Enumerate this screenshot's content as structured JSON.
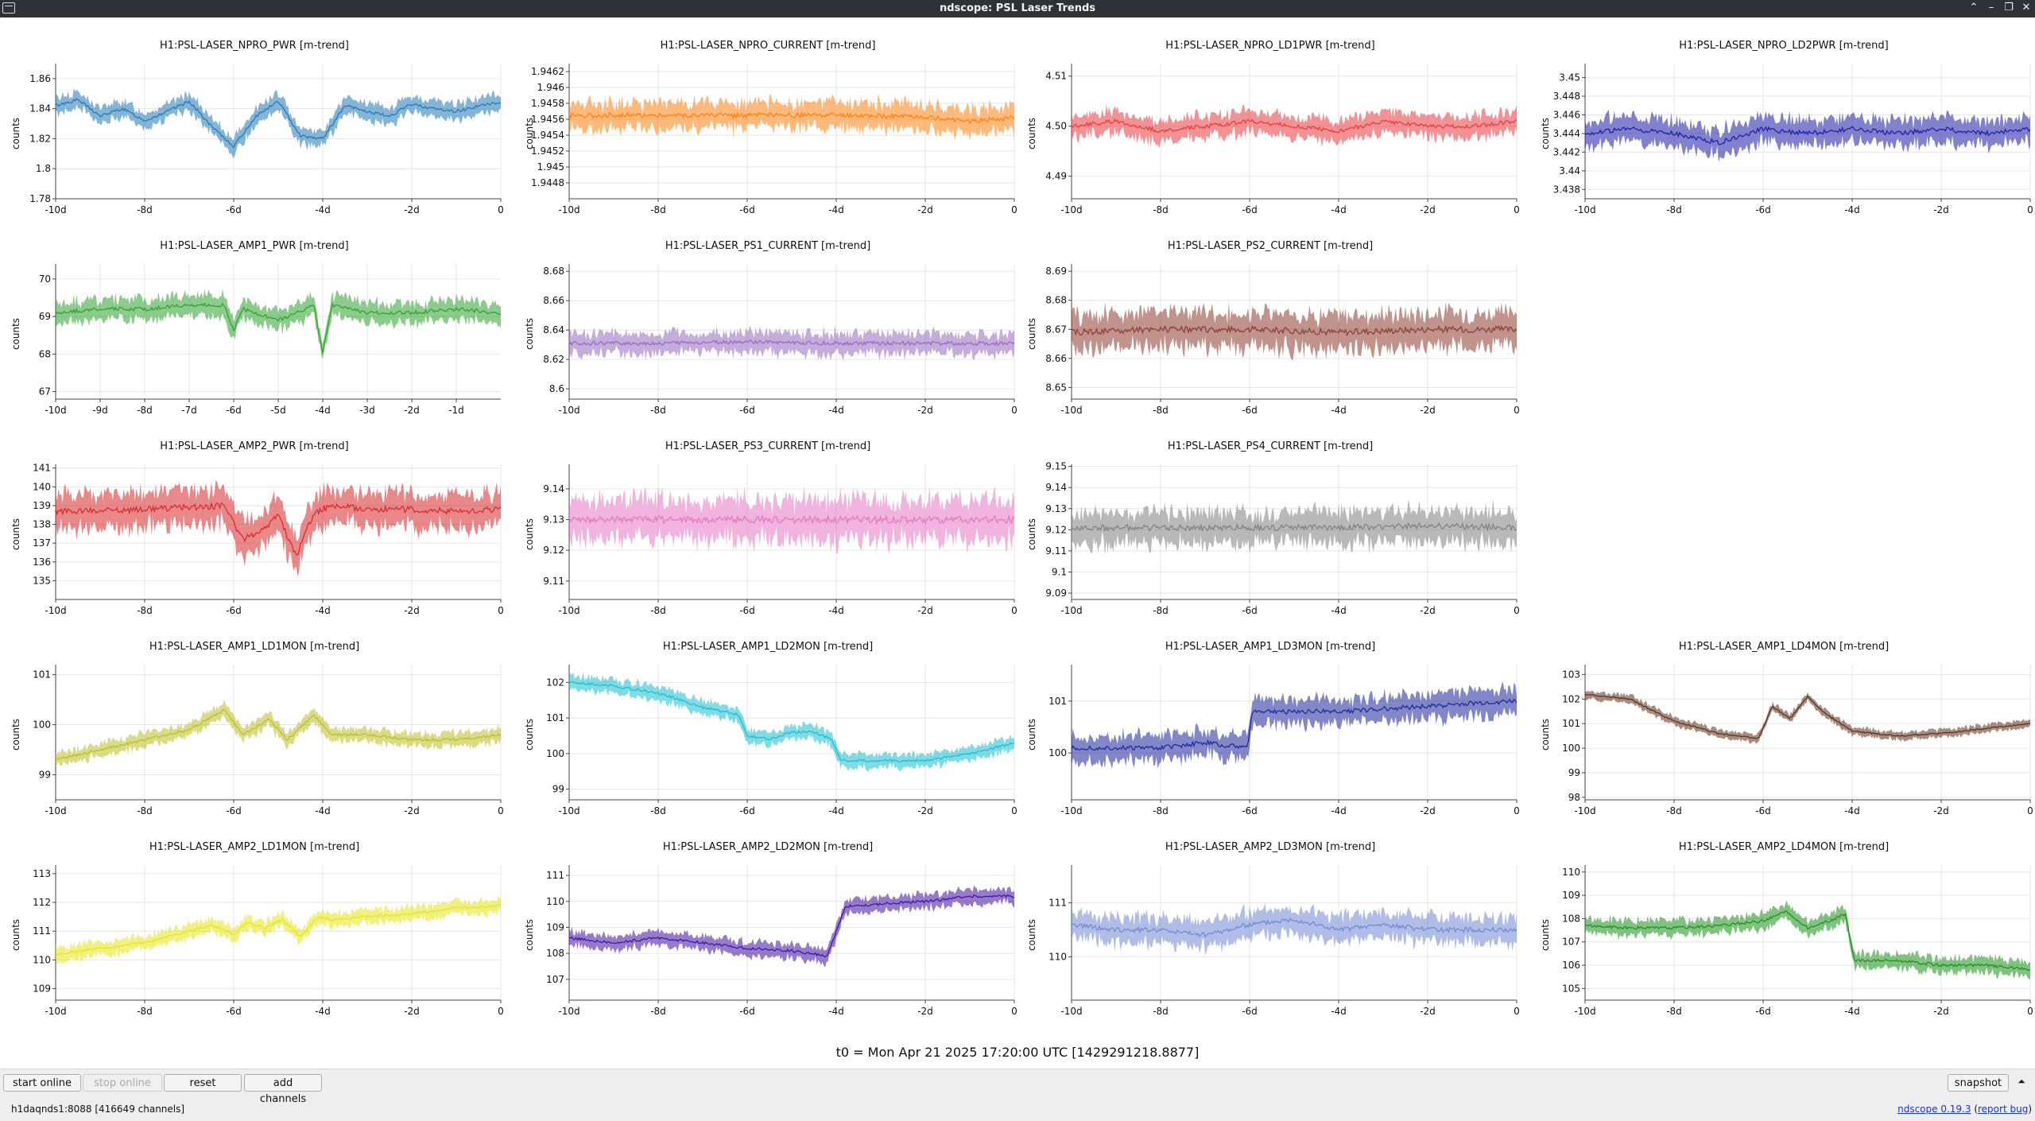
{
  "window": {
    "title": "ndscope: PSL Laser Trends",
    "controls": [
      {
        "name": "keep-above-icon",
        "glyph": "⌃"
      },
      {
        "name": "minimize-icon",
        "glyph": "–"
      },
      {
        "name": "maximize-icon",
        "glyph": "❐"
      },
      {
        "name": "close-icon",
        "glyph": "✕"
      }
    ]
  },
  "axis_label": "counts",
  "t0_label": "t0 = Mon Apr 21 2025 17:20:00 UTC [1429291218.8877]",
  "toolbar": {
    "start_online": "start online",
    "stop_online": "stop online",
    "reset": "reset",
    "add_channels": "add channels",
    "snapshot": "snapshot",
    "expand_icon": "⏶"
  },
  "status": {
    "server": "h1daqnds1:8088  [416649 channels]",
    "version_link": "ndscope 0.19.3",
    "open_paren": " (",
    "report_bug": "report bug",
    "close_paren": ")"
  },
  "chart_data": [
    {
      "type": "line",
      "title": "H1:PSL-LASER_NPRO_PWR [m-trend]",
      "ylabel": "counts",
      "color": "#1f77b4",
      "ylim": [
        1.78,
        1.87
      ],
      "yticks": [
        "1.86",
        "1.84",
        "1.82",
        "1.8",
        "1.78"
      ],
      "xticks": [
        "-10d",
        "-8d",
        "-6d",
        "-4d",
        "-2d",
        "0"
      ],
      "x": [
        -10,
        -9.5,
        -9,
        -8.5,
        -8,
        -7.5,
        -7,
        -6.5,
        -6,
        -5.5,
        -5,
        -4.5,
        -4,
        -3.5,
        -3,
        -2.5,
        -2,
        -1.5,
        -1,
        -0.5,
        0
      ],
      "y": [
        1.842,
        1.846,
        1.835,
        1.84,
        1.832,
        1.838,
        1.845,
        1.828,
        1.815,
        1.835,
        1.845,
        1.822,
        1.82,
        1.842,
        1.838,
        1.835,
        1.843,
        1.84,
        1.838,
        1.842,
        1.844
      ],
      "band": 0.01
    },
    {
      "type": "line",
      "title": "H1:PSL-LASER_NPRO_CURRENT [m-trend]",
      "ylabel": "counts",
      "color": "#ff7f0e",
      "ylim": [
        1.9446,
        1.9463
      ],
      "yticks": [
        "1.9462",
        "1.946",
        "1.9458",
        "1.9456",
        "1.9454",
        "1.9452",
        "1.945",
        "1.9448"
      ],
      "xticks": [
        "-10d",
        "-8d",
        "-6d",
        "-4d",
        "-2d",
        "0"
      ],
      "x": [
        -10,
        -8,
        -6,
        -4,
        -2,
        -1,
        0
      ],
      "y": [
        1.94565,
        1.94565,
        1.94565,
        1.94565,
        1.94563,
        1.94558,
        1.94562
      ],
      "band": 0.0003
    },
    {
      "type": "line",
      "title": "H1:PSL-LASER_NPRO_LD1PWR [m-trend]",
      "ylabel": "counts",
      "color": "#e8383d",
      "ylim": [
        4.4855,
        4.5125
      ],
      "yticks": [
        "4.51",
        "4.50",
        "4.49"
      ],
      "xticks": [
        "-10d",
        "-8d",
        "-6d",
        "-4d",
        "-2d",
        "0"
      ],
      "x": [
        -10,
        -9,
        -8,
        -7,
        -6,
        -5,
        -4,
        -3,
        -2,
        -1,
        0
      ],
      "y": [
        4.5,
        4.501,
        4.499,
        4.5,
        4.501,
        4.5,
        4.499,
        4.501,
        4.5,
        4.5,
        4.501
      ],
      "band": 0.004
    },
    {
      "type": "line",
      "title": "H1:PSL-LASER_NPRO_LD2PWR [m-trend]",
      "ylabel": "counts",
      "color": "#1a1aa6",
      "ylim": [
        3.437,
        3.4515
      ],
      "yticks": [
        "3.45",
        "3.448",
        "3.446",
        "3.444",
        "3.442",
        "3.44",
        "3.438"
      ],
      "xticks": [
        "-10d",
        "-8d",
        "-6d",
        "-4d",
        "-2d",
        "0"
      ],
      "x": [
        -10,
        -9,
        -8,
        -7,
        -6,
        -5,
        -4,
        -3,
        -2,
        -1,
        0
      ],
      "y": [
        3.444,
        3.4445,
        3.444,
        3.443,
        3.4445,
        3.444,
        3.4445,
        3.444,
        3.4445,
        3.444,
        3.4445
      ],
      "band": 0.0025
    },
    {
      "type": "line",
      "title": "H1:PSL-LASER_AMP1_PWR [m-trend]",
      "ylabel": "counts",
      "color": "#2ca02c",
      "ylim": [
        66.8,
        70.4
      ],
      "yticks": [
        "70",
        "69",
        "68",
        "67"
      ],
      "xticks": [
        "-10d",
        "-9d",
        "-8d",
        "-7d",
        "-6d",
        "-5d",
        "-4d",
        "-3d",
        "-2d",
        "-1d"
      ],
      "x": [
        -10,
        -9,
        -8,
        -7,
        -6.2,
        -6,
        -5.8,
        -5,
        -4.2,
        -4,
        -3.8,
        -3,
        -2,
        -1,
        -0.1
      ],
      "y": [
        69.1,
        69.2,
        69.2,
        69.3,
        69.3,
        68.6,
        69.2,
        68.9,
        69.3,
        68,
        69.3,
        69.1,
        69.1,
        69.2,
        69.1
      ],
      "band": 0.5
    },
    {
      "type": "line",
      "title": "H1:PSL-LASER_PS1_CURRENT [m-trend]",
      "ylabel": "counts",
      "color": "#9467bd",
      "ylim": [
        8.593,
        8.685
      ],
      "yticks": [
        "8.68",
        "8.66",
        "8.64",
        "8.62",
        "8.6"
      ],
      "xticks": [
        "-10d",
        "-8d",
        "-6d",
        "-4d",
        "-2d",
        "0"
      ],
      "x": [
        -10,
        -8,
        -6,
        -4,
        -2,
        0
      ],
      "y": [
        8.631,
        8.631,
        8.632,
        8.631,
        8.631,
        8.631
      ],
      "band": 0.013
    },
    {
      "type": "line",
      "title": "H1:PSL-LASER_PS2_CURRENT [m-trend]",
      "ylabel": "counts",
      "color": "#8c3b2f",
      "ylim": [
        8.646,
        8.6925
      ],
      "yticks": [
        "8.69",
        "8.68",
        "8.67",
        "8.66",
        "8.65"
      ],
      "xticks": [
        "-10d",
        "-8d",
        "-6d",
        "-4d",
        "-2d",
        "0"
      ],
      "x": [
        -10,
        -8,
        -6,
        -4,
        -2,
        0
      ],
      "y": [
        8.669,
        8.67,
        8.67,
        8.669,
        8.67,
        8.67
      ],
      "band": 0.011
    },
    {
      "type": "line",
      "title": "H1:PSL-LASER_AMP2_PWR [m-trend]",
      "ylabel": "counts",
      "color": "#d62728",
      "ylim": [
        134,
        141.2
      ],
      "yticks": [
        "141",
        "140",
        "139",
        "138",
        "137",
        "136",
        "135"
      ],
      "xticks": [
        "-10d",
        "-8d",
        "-6d",
        "-4d",
        "-2d",
        "0"
      ],
      "x": [
        -10,
        -8,
        -6.2,
        -5.8,
        -5.3,
        -5,
        -4.6,
        -4.2,
        -3.8,
        -3,
        -2,
        -1,
        0
      ],
      "y": [
        138.7,
        138.8,
        139,
        137.2,
        137.8,
        138.5,
        136.3,
        138.6,
        139,
        138.8,
        138.8,
        138.7,
        138.8
      ],
      "band": 1.7
    },
    {
      "type": "line",
      "title": "H1:PSL-LASER_PS3_CURRENT [m-trend]",
      "ylabel": "counts",
      "color": "#e377c2",
      "ylim": [
        9.104,
        9.148
      ],
      "yticks": [
        "9.14",
        "9.13",
        "9.12",
        "9.11"
      ],
      "xticks": [
        "-10d",
        "-8d",
        "-6d",
        "-4d",
        "-2d",
        "0"
      ],
      "x": [
        -10,
        -8,
        -6,
        -4,
        -2,
        0
      ],
      "y": [
        9.13,
        9.13,
        9.13,
        9.13,
        9.13,
        9.13
      ],
      "band": 0.012
    },
    {
      "type": "line",
      "title": "H1:PSL-LASER_PS4_CURRENT [m-trend]",
      "ylabel": "counts",
      "color": "#7f7f7f",
      "ylim": [
        9.087,
        9.151
      ],
      "yticks": [
        "9.15",
        "9.14",
        "9.13",
        "9.12",
        "9.11",
        "9.1",
        "9.09"
      ],
      "xticks": [
        "-10d",
        "-8d",
        "-6d",
        "-4d",
        "-2d",
        "0"
      ],
      "x": [
        -10,
        -8,
        -6,
        -4,
        -2,
        0
      ],
      "y": [
        9.121,
        9.121,
        9.121,
        9.121,
        9.122,
        9.121
      ],
      "band": 0.014
    },
    {
      "type": "line",
      "title": "H1:PSL-LASER_AMP1_LD1MON [m-trend]",
      "ylabel": "counts",
      "color": "#bcbd22",
      "ylim": [
        98.5,
        101.2
      ],
      "yticks": [
        "101",
        "100",
        "99"
      ],
      "xticks": [
        "-10d",
        "-8d",
        "-6d",
        "-4d",
        "-2d",
        "0"
      ],
      "x": [
        -10,
        -9,
        -8,
        -7,
        -6.2,
        -5.8,
        -5.2,
        -4.8,
        -4.2,
        -3.8,
        -3,
        -2,
        -1,
        0
      ],
      "y": [
        99.3,
        99.5,
        99.7,
        99.9,
        100.3,
        99.8,
        100.1,
        99.7,
        100.2,
        99.8,
        99.8,
        99.7,
        99.7,
        99.8
      ],
      "band": 0.25
    },
    {
      "type": "line",
      "title": "H1:PSL-LASER_AMP1_LD2MON [m-trend]",
      "ylabel": "counts",
      "color": "#17becf",
      "ylim": [
        98.7,
        102.5
      ],
      "yticks": [
        "102",
        "101",
        "100",
        "99"
      ],
      "xticks": [
        "-10d",
        "-8d",
        "-6d",
        "-4d",
        "-2d",
        "0"
      ],
      "x": [
        -10,
        -9,
        -8,
        -7,
        -6.2,
        -6,
        -5.5,
        -5,
        -4.5,
        -4.1,
        -3.9,
        -3,
        -2,
        -1,
        0
      ],
      "y": [
        102,
        101.9,
        101.7,
        101.3,
        101.1,
        100.5,
        100.4,
        100.6,
        100.6,
        100.4,
        99.8,
        99.8,
        99.8,
        100,
        100.3
      ],
      "band": 0.35
    },
    {
      "type": "line",
      "title": "H1:PSL-LASER_AMP1_LD3MON [m-trend]",
      "ylabel": "counts",
      "color": "#1c2499",
      "ylim": [
        99.1,
        101.7
      ],
      "yticks": [
        "101",
        "100"
      ],
      "xticks": [
        "-10d",
        "-8d",
        "-6d",
        "-4d",
        "-2d",
        "0"
      ],
      "x": [
        -10,
        -8,
        -7,
        -6.05,
        -5.95,
        -5,
        -4,
        -3,
        -2,
        -1,
        0
      ],
      "y": [
        100.1,
        100.1,
        100.2,
        100.1,
        100.8,
        100.8,
        100.8,
        100.85,
        100.9,
        100.95,
        101
      ],
      "band": 0.45
    },
    {
      "type": "line",
      "title": "H1:PSL-LASER_AMP1_LD4MON [m-trend]",
      "ylabel": "counts",
      "color": "#5c2e1a",
      "ylim": [
        97.9,
        103.4
      ],
      "yticks": [
        "103",
        "102",
        "101",
        "100",
        "99",
        "98"
      ],
      "xticks": [
        "-10d",
        "-8d",
        "-6d",
        "-4d",
        "-2d",
        "0"
      ],
      "x": [
        -10,
        -9,
        -8,
        -7,
        -6.1,
        -5.8,
        -5.4,
        -5,
        -4.6,
        -4,
        -3,
        -2,
        -1,
        0
      ],
      "y": [
        102.2,
        102,
        101.1,
        100.6,
        100.4,
        101.7,
        101.2,
        102.1,
        101.4,
        100.7,
        100.5,
        100.6,
        100.8,
        101
      ],
      "band": 0.3
    },
    {
      "type": "line",
      "title": "H1:PSL-LASER_AMP2_LD1MON [m-trend]",
      "ylabel": "counts",
      "color": "#e6e619",
      "ylim": [
        108.6,
        113.3
      ],
      "yticks": [
        "113",
        "112",
        "111",
        "110",
        "109"
      ],
      "xticks": [
        "-10d",
        "-8d",
        "-6d",
        "-4d",
        "-2d",
        "0"
      ],
      "x": [
        -10,
        -8,
        -6.5,
        -6,
        -5.7,
        -5.3,
        -4.9,
        -4.5,
        -4.1,
        -3.8,
        -3,
        -2,
        -1,
        0
      ],
      "y": [
        110.2,
        110.6,
        111.2,
        110.9,
        111.3,
        111.1,
        111.4,
        110.8,
        111.5,
        111.4,
        111.5,
        111.6,
        111.8,
        111.9
      ],
      "band": 0.45
    },
    {
      "type": "line",
      "title": "H1:PSL-LASER_AMP2_LD2MON [m-trend]",
      "ylabel": "counts",
      "color": "#3f0fa1",
      "ylim": [
        106.2,
        111.4
      ],
      "yticks": [
        "111",
        "110",
        "109",
        "108",
        "107"
      ],
      "xticks": [
        "-10d",
        "-8d",
        "-6d",
        "-4d",
        "-2d",
        "0"
      ],
      "x": [
        -10,
        -9,
        -8,
        -7,
        -6,
        -5,
        -4.2,
        -3.8,
        -3,
        -2,
        -1,
        0
      ],
      "y": [
        108.6,
        108.4,
        108.6,
        108.4,
        108.2,
        108.1,
        107.9,
        109.8,
        109.9,
        110,
        110.2,
        110.2
      ],
      "band": 0.5
    },
    {
      "type": "line",
      "title": "H1:PSL-LASER_AMP2_LD3MON [m-trend]",
      "ylabel": "counts",
      "color": "#6f86d2",
      "ylim": [
        109.2,
        111.7
      ],
      "yticks": [
        "111",
        "110"
      ],
      "xticks": [
        "-10d",
        "-8d",
        "-6d",
        "-4d",
        "-2d",
        "0"
      ],
      "x": [
        -10,
        -9,
        -8,
        -7,
        -6,
        -5,
        -4,
        -3,
        -2,
        -1,
        0
      ],
      "y": [
        110.6,
        110.5,
        110.5,
        110.4,
        110.6,
        110.7,
        110.5,
        110.6,
        110.5,
        110.5,
        110.5
      ],
      "band": 0.45
    },
    {
      "type": "line",
      "title": "H1:PSL-LASER_AMP2_LD4MON [m-trend]",
      "ylabel": "counts",
      "color": "#1a8f1a",
      "ylim": [
        104.5,
        110.3
      ],
      "yticks": [
        "110",
        "109",
        "108",
        "107",
        "106",
        "105"
      ],
      "xticks": [
        "-10d",
        "-8d",
        "-6d",
        "-4d",
        "-2d",
        "0"
      ],
      "x": [
        -10,
        -9,
        -8,
        -7,
        -6,
        -5.5,
        -5,
        -4.5,
        -4.15,
        -3.95,
        -3,
        -2,
        -1,
        0
      ],
      "y": [
        107.7,
        107.6,
        107.6,
        107.7,
        107.9,
        108.3,
        107.6,
        107.9,
        108.2,
        106.2,
        106.2,
        106,
        106,
        105.8
      ],
      "band": 0.6
    }
  ]
}
